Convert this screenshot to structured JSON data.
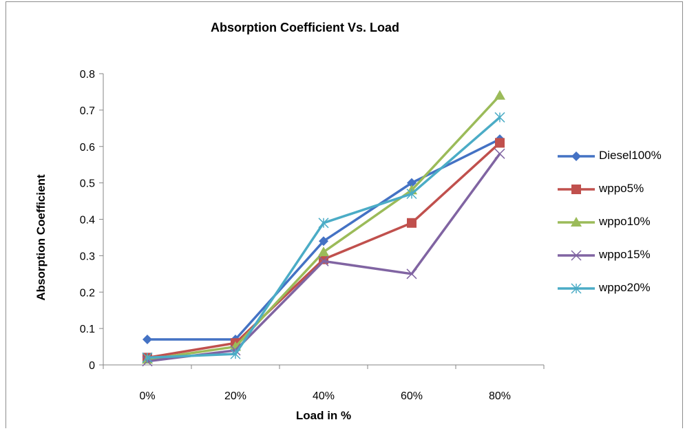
{
  "chart_data": {
    "type": "line",
    "title": "Absorption Coefficient  Vs. Load",
    "xlabel": "Load in %",
    "ylabel": "Absorption Coefficient",
    "categories": [
      "0%",
      "20%",
      "40%",
      "60%",
      "80%"
    ],
    "ylim": [
      0,
      0.8
    ],
    "yticks": [
      "0",
      "0.1",
      "0.2",
      "0.3",
      "0.4",
      "0.5",
      "0.6",
      "0.7",
      "0.8"
    ],
    "grid": false,
    "legend_position": "right",
    "series": [
      {
        "name": "Diesel100%",
        "values": [
          0.07,
          0.07,
          0.34,
          0.5,
          0.62
        ],
        "color": "#4472C4",
        "marker": "diamond"
      },
      {
        "name": "wppo5%",
        "values": [
          0.02,
          0.06,
          0.29,
          0.39,
          0.61
        ],
        "color": "#C0504D",
        "marker": "square"
      },
      {
        "name": "wppo10%",
        "values": [
          0.015,
          0.05,
          0.31,
          0.48,
          0.74
        ],
        "color": "#9BBB59",
        "marker": "triangle"
      },
      {
        "name": "wppo15%",
        "values": [
          0.01,
          0.04,
          0.285,
          0.25,
          0.58
        ],
        "color": "#8064A2",
        "marker": "x"
      },
      {
        "name": "wppo20%",
        "values": [
          0.02,
          0.03,
          0.39,
          0.47,
          0.68
        ],
        "color": "#4BACC6",
        "marker": "star"
      }
    ]
  }
}
